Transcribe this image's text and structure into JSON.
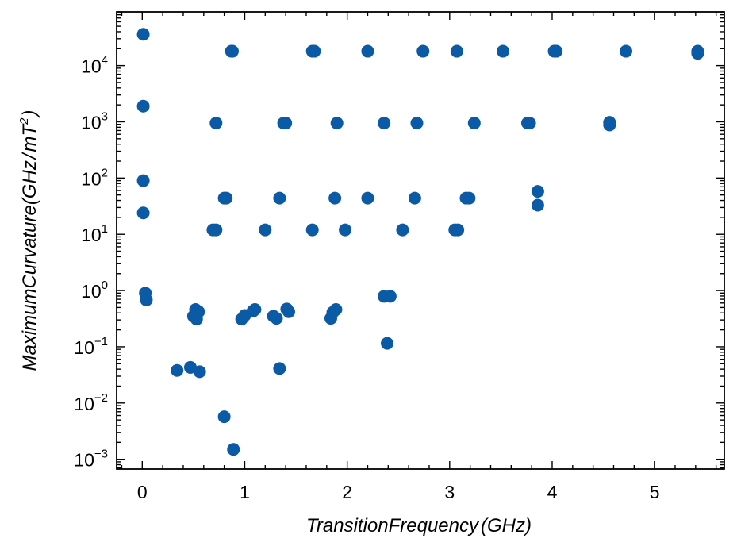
{
  "chart_data": {
    "type": "scatter",
    "xlabel": "TransitionFrequency(GHz)",
    "ylabel": "MaximumCurvature(GHz/mT²)",
    "xlabel_parts": {
      "main": "TransitionFrequency",
      "open": "(",
      "unit": "GHz",
      "close": ")"
    },
    "ylabel_parts": {
      "main": "MaximumCurvature",
      "open": "(",
      "unit1": "GHz",
      "slash": "/",
      "unit2": "mT",
      "exp": "2",
      "close": ")"
    },
    "xlim": [
      -0.25,
      5.68
    ],
    "ylim": [
      0.00067,
      90000
    ],
    "yscale": "log",
    "grid": false,
    "legend": "none",
    "x_ticks": [
      {
        "value": 0,
        "label": "0"
      },
      {
        "value": 1,
        "label": "1"
      },
      {
        "value": 2,
        "label": "2"
      },
      {
        "value": 3,
        "label": "3"
      },
      {
        "value": 4,
        "label": "4"
      },
      {
        "value": 5,
        "label": "5"
      }
    ],
    "y_ticks": [
      {
        "value": 0.001,
        "base": "10",
        "exp": "−3"
      },
      {
        "value": 0.01,
        "base": "10",
        "exp": "−2"
      },
      {
        "value": 0.1,
        "base": "10",
        "exp": "−1"
      },
      {
        "value": 1,
        "base": "10",
        "exp": "0"
      },
      {
        "value": 10,
        "base": "10",
        "exp": "1"
      },
      {
        "value": 100,
        "base": "10",
        "exp": "2"
      },
      {
        "value": 1000,
        "base": "10",
        "exp": "3"
      },
      {
        "value": 10000,
        "base": "10",
        "exp": "4"
      }
    ],
    "marker_color": "#0b5aa6",
    "series": [
      {
        "points": [
          [
            0.01,
            36000
          ],
          [
            0.01,
            1900
          ],
          [
            0.01,
            90
          ],
          [
            0.01,
            24
          ],
          [
            0.03,
            0.9
          ],
          [
            0.04,
            0.68
          ],
          [
            0.87,
            18000
          ],
          [
            0.88,
            18000
          ],
          [
            1.66,
            18000
          ],
          [
            1.68,
            18000
          ],
          [
            2.2,
            18000
          ],
          [
            2.74,
            18000
          ],
          [
            3.07,
            18000
          ],
          [
            3.52,
            18000
          ],
          [
            4.02,
            18000
          ],
          [
            4.04,
            18000
          ],
          [
            4.72,
            18000
          ],
          [
            5.42,
            18000
          ],
          [
            5.42,
            16500
          ],
          [
            0.72,
            950
          ],
          [
            1.38,
            950
          ],
          [
            1.4,
            950
          ],
          [
            1.9,
            950
          ],
          [
            2.36,
            950
          ],
          [
            2.68,
            950
          ],
          [
            3.24,
            950
          ],
          [
            3.76,
            950
          ],
          [
            3.78,
            950
          ],
          [
            4.56,
            980
          ],
          [
            4.56,
            880
          ],
          [
            0.8,
            44
          ],
          [
            0.82,
            44
          ],
          [
            1.34,
            44
          ],
          [
            1.88,
            44
          ],
          [
            2.2,
            44
          ],
          [
            2.66,
            44
          ],
          [
            3.16,
            44
          ],
          [
            3.19,
            44
          ],
          [
            3.86,
            58
          ],
          [
            3.86,
            33
          ],
          [
            0.69,
            12
          ],
          [
            0.72,
            12
          ],
          [
            1.2,
            12
          ],
          [
            1.66,
            12
          ],
          [
            1.98,
            12
          ],
          [
            2.54,
            12
          ],
          [
            3.05,
            12
          ],
          [
            3.08,
            12
          ],
          [
            2.36,
            0.79
          ],
          [
            2.42,
            0.79
          ],
          [
            0.52,
            0.46
          ],
          [
            0.55,
            0.42
          ],
          [
            0.5,
            0.35
          ],
          [
            0.53,
            0.31
          ],
          [
            0.97,
            0.31
          ],
          [
            1.0,
            0.36
          ],
          [
            1.08,
            0.43
          ],
          [
            1.1,
            0.46
          ],
          [
            1.28,
            0.35
          ],
          [
            1.31,
            0.32
          ],
          [
            1.41,
            0.47
          ],
          [
            1.43,
            0.42
          ],
          [
            1.84,
            0.32
          ],
          [
            1.86,
            0.41
          ],
          [
            1.89,
            0.46
          ],
          [
            2.39,
            0.115
          ],
          [
            0.34,
            0.038
          ],
          [
            0.47,
            0.043
          ],
          [
            0.56,
            0.036
          ],
          [
            1.34,
            0.041
          ],
          [
            0.8,
            0.0057
          ],
          [
            0.89,
            0.0015
          ]
        ]
      }
    ]
  }
}
